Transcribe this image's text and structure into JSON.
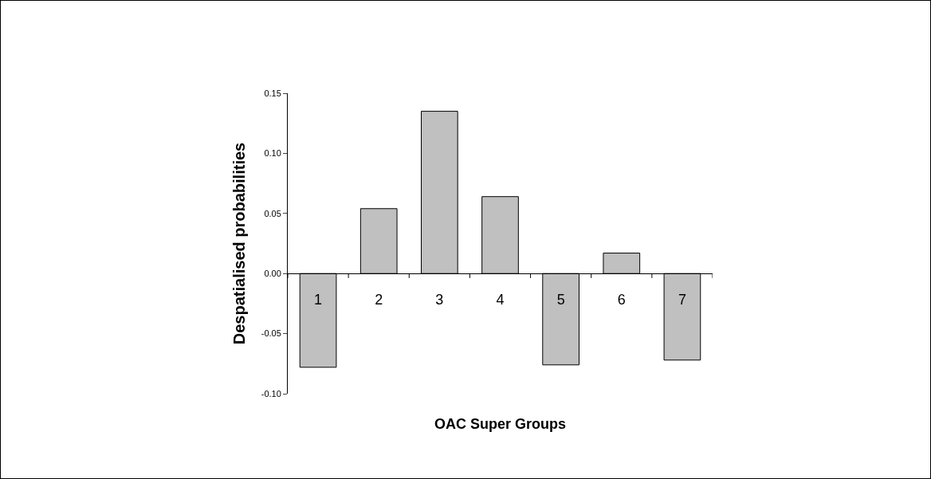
{
  "chart_data": {
    "type": "bar",
    "xlabel": "OAC Super Groups",
    "ylabel": "Despatialised probabilities",
    "categories": [
      "1",
      "2",
      "3",
      "4",
      "5",
      "6",
      "7"
    ],
    "values": [
      -0.078,
      0.054,
      0.135,
      0.064,
      -0.076,
      0.017,
      -0.072
    ],
    "color": "#c0c0c0",
    "ylim": [
      -0.1,
      0.15
    ],
    "yticks": [
      {
        "value": -0.1,
        "label": "-0.10"
      },
      {
        "value": -0.05,
        "label": "-0.05"
      },
      {
        "value": 0,
        "label": "0.00"
      },
      {
        "value": 0.05,
        "label": "0.05"
      },
      {
        "value": 0.1,
        "label": "0.10"
      },
      {
        "value": 0.15,
        "label": "0.15"
      }
    ],
    "grid": false
  }
}
